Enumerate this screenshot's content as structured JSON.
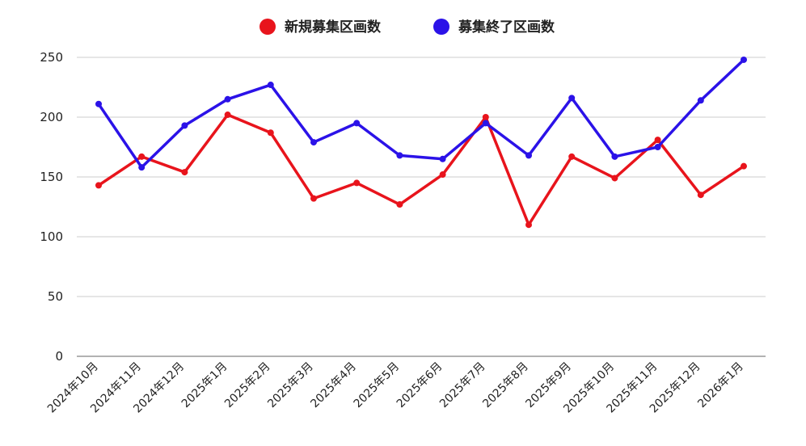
{
  "chart_data": {
    "type": "line",
    "categories": [
      "2024年10月",
      "2024年11月",
      "2024年12月",
      "2025年1月",
      "2025年2月",
      "2025年3月",
      "2025年4月",
      "2025年5月",
      "2025年6月",
      "2025年7月",
      "2025年8月",
      "2025年9月",
      "2025年10月",
      "2025年11月",
      "2025年12月",
      "2026年1月"
    ],
    "series": [
      {
        "name": "新規募集区画数",
        "color": "#e8141c",
        "values": [
          143,
          167,
          154,
          202,
          187,
          132,
          145,
          127,
          152,
          200,
          110,
          167,
          149,
          181,
          135,
          159
        ]
      },
      {
        "name": "募集終了区画数",
        "color": "#2b12e8",
        "values": [
          211,
          158,
          193,
          215,
          227,
          179,
          195,
          168,
          165,
          195,
          168,
          216,
          167,
          175,
          214,
          248
        ]
      }
    ],
    "yticks": [
      0,
      50,
      100,
      150,
      200,
      250
    ],
    "ylim": [
      0,
      250
    ],
    "grid": true,
    "legend_position": "top-center",
    "title": "",
    "xlabel": "",
    "ylabel": ""
  }
}
